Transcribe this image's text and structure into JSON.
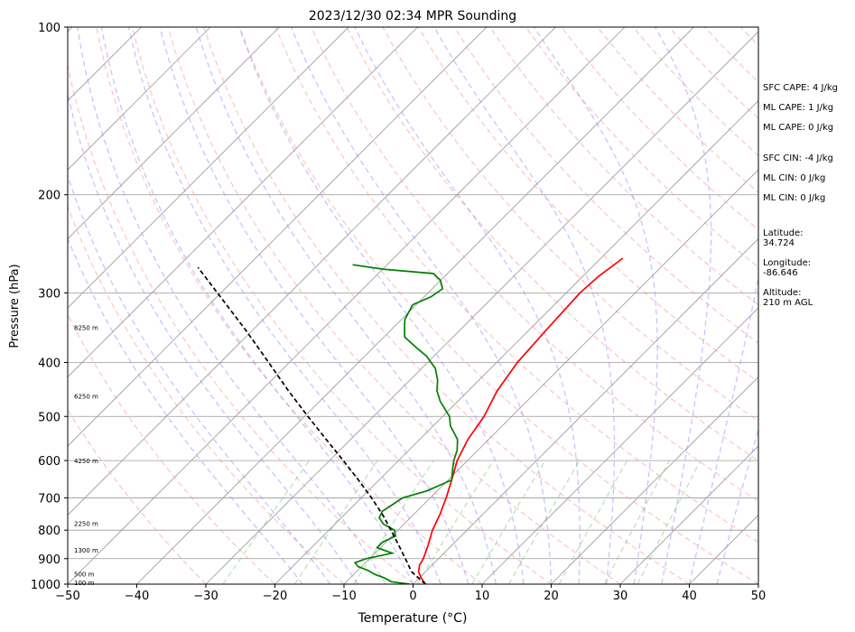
{
  "chart_data": {
    "type": "line",
    "title": "2023/12/30 02:34 MPR Sounding",
    "xlabel": "Temperature (°C)",
    "ylabel": "Pressure (hPa)",
    "xlim": [
      -50,
      50
    ],
    "ylim": [
      1000,
      100
    ],
    "y_scale": "log",
    "skew": "skew-T log-p",
    "grid": true,
    "x_ticks": [
      "−50",
      "−40",
      "−30",
      "−20",
      "−10",
      "0",
      "10",
      "20",
      "30",
      "40",
      "50"
    ],
    "y_ticks": [
      "1000",
      "900",
      "800",
      "700",
      "600",
      "500",
      "400",
      "300",
      "200",
      "100"
    ],
    "colors": {
      "temperature": "#ff0000",
      "dewpoint": "#008000",
      "parcel": "#000000",
      "dry_adiabats": "#ff9999",
      "moist_adiabats": "#9f8fff",
      "mixing_ratio": "#88cc88",
      "isotherms": "#999999"
    },
    "series": [
      {
        "role": "temperature",
        "pressure": [
          1000,
          975,
          950,
          925,
          900,
          850,
          800,
          750,
          700,
          650,
          600,
          550,
          500,
          450,
          400,
          350,
          300,
          280,
          260
        ],
        "values": [
          1.8,
          0.3,
          -1.0,
          -1.8,
          -2.2,
          -3.5,
          -5.0,
          -6.2,
          -7.7,
          -9.5,
          -11.5,
          -13.0,
          -14.0,
          -15.8,
          -17.0,
          -17.5,
          -18.0,
          -17.7,
          -16.8
        ]
      },
      {
        "role": "dewpoint",
        "pressure": [
          1000,
          990,
          975,
          960,
          945,
          930,
          915,
          900,
          880,
          860,
          840,
          820,
          800,
          780,
          760,
          740,
          720,
          700,
          680,
          650,
          620,
          600,
          575,
          550,
          520,
          500,
          470,
          450,
          430,
          410,
          390,
          375,
          360,
          345,
          335,
          325,
          315,
          305,
          295,
          285,
          277,
          272,
          267
        ],
        "values": [
          -0.5,
          -3.5,
          -5.0,
          -7.0,
          -8.5,
          -10.5,
          -11.5,
          -10.5,
          -7.5,
          -10.5,
          -10.5,
          -9.5,
          -10.5,
          -13.0,
          -14.5,
          -15.0,
          -14.5,
          -14.0,
          -11.5,
          -9.5,
          -11.0,
          -12.0,
          -13.0,
          -14.5,
          -17.5,
          -19.0,
          -22.5,
          -24.5,
          -26.0,
          -28.0,
          -31.0,
          -34.0,
          -37.0,
          -38.5,
          -39.5,
          -40.0,
          -40.5,
          -39.0,
          -38.5,
          -40.0,
          -42.0,
          -50.0,
          -55.0
        ]
      },
      {
        "role": "parcel",
        "pressure": [
          1000,
          950,
          900,
          850,
          800,
          750,
          700,
          650,
          600,
          550,
          500,
          450,
          400,
          350,
          300,
          270
        ],
        "values": [
          1.8,
          -2.0,
          -4.8,
          -7.8,
          -11.0,
          -14.5,
          -18.5,
          -23.0,
          -28.0,
          -33.5,
          -39.5,
          -46.0,
          -53.0,
          -61.0,
          -70.5,
          -77.0
        ]
      }
    ],
    "height_labels": [
      "100 m",
      "500 m",
      "1300 m",
      "2250 m",
      "4250 m",
      "6250 m",
      "8250 m"
    ],
    "height_label_pressures": [
      997,
      962,
      871,
      780,
      602,
      461,
      347
    ]
  },
  "panel": {
    "sfc_cape": "SFC CAPE: 4 J/kg",
    "ml_cape_1": "ML CAPE: 1 J/kg",
    "ml_cape_2": "ML CAPE: 0 J/kg",
    "sfc_cin": "SFC CIN: -4 J/kg",
    "ml_cin_1": "ML CIN: 0 J/kg",
    "ml_cin_2": "ML CIN: 0 J/kg",
    "latitude_label": "Latitude:",
    "latitude_value": "34.724",
    "longitude_label": "Longitude:",
    "longitude_value": "-86.646",
    "altitude_label": "Altitude:",
    "altitude_value": "210 m AGL"
  }
}
